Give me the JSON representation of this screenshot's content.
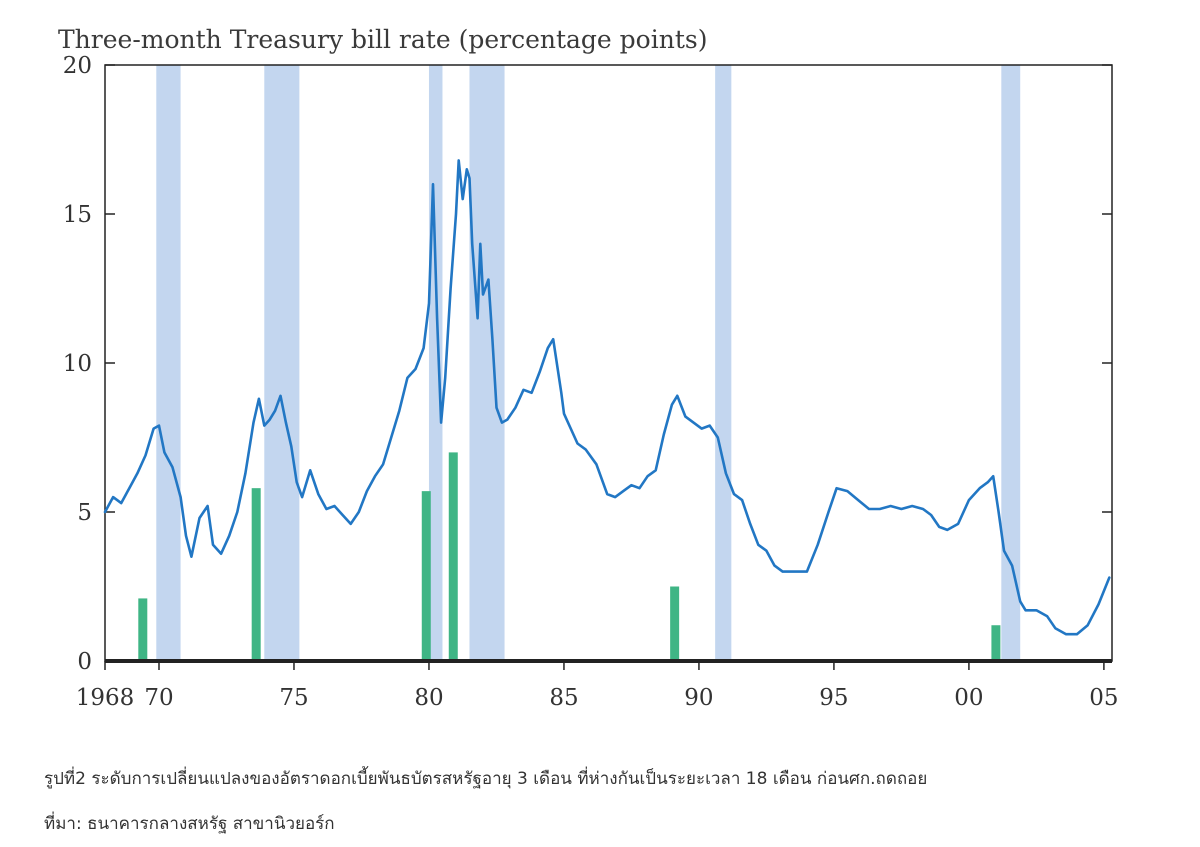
{
  "chart_data": {
    "type": "line",
    "title": "Three-month Treasury bill rate (percentage points)",
    "xlabel": "",
    "ylabel": "",
    "xlim": [
      1968,
      2005.3
    ],
    "ylim": [
      0,
      20
    ],
    "y_ticks": [
      0,
      5,
      10,
      15,
      20
    ],
    "x_ticks": [
      {
        "value": 1968,
        "label": "1968"
      },
      {
        "value": 1970,
        "label": "70"
      },
      {
        "value": 1975,
        "label": "75"
      },
      {
        "value": 1980,
        "label": "80"
      },
      {
        "value": 1985,
        "label": "85"
      },
      {
        "value": 1990,
        "label": "90"
      },
      {
        "value": 1995,
        "label": "95"
      },
      {
        "value": 2000,
        "label": "00"
      },
      {
        "value": 2005,
        "label": "05"
      }
    ],
    "recessions": [
      {
        "start": 1969.9,
        "end": 1970.8
      },
      {
        "start": 1973.9,
        "end": 1975.2
      },
      {
        "start": 1980.0,
        "end": 1980.5
      },
      {
        "start": 1981.5,
        "end": 1982.8
      },
      {
        "start": 1990.6,
        "end": 1991.2
      },
      {
        "start": 2001.2,
        "end": 2001.9
      }
    ],
    "lead_bars": [
      {
        "x": 1969.4,
        "value": 2.1
      },
      {
        "x": 1973.6,
        "value": 5.8
      },
      {
        "x": 1979.9,
        "value": 5.7
      },
      {
        "x": 1980.9,
        "value": 7.0
      },
      {
        "x": 1989.1,
        "value": 2.5
      },
      {
        "x": 2001.0,
        "value": 1.2
      }
    ],
    "series": [
      {
        "name": "Three-month Treasury bill rate",
        "x": [
          1968.0,
          1968.3,
          1968.6,
          1968.9,
          1969.2,
          1969.5,
          1969.8,
          1970.0,
          1970.2,
          1970.5,
          1970.8,
          1971.0,
          1971.2,
          1971.5,
          1971.8,
          1972.0,
          1972.3,
          1972.6,
          1972.9,
          1973.2,
          1973.5,
          1973.7,
          1973.9,
          1974.1,
          1974.3,
          1974.5,
          1974.7,
          1974.9,
          1975.1,
          1975.3,
          1975.6,
          1975.9,
          1976.2,
          1976.5,
          1976.8,
          1977.1,
          1977.4,
          1977.7,
          1978.0,
          1978.3,
          1978.6,
          1978.9,
          1979.2,
          1979.5,
          1979.8,
          1980.0,
          1980.15,
          1980.3,
          1980.45,
          1980.6,
          1980.8,
          1981.0,
          1981.1,
          1981.25,
          1981.4,
          1981.5,
          1981.6,
          1981.8,
          1981.9,
          1982.0,
          1982.2,
          1982.35,
          1982.5,
          1982.7,
          1982.9,
          1983.2,
          1983.5,
          1983.8,
          1984.1,
          1984.4,
          1984.6,
          1984.9,
          1985.0,
          1985.2,
          1985.5,
          1985.8,
          1986.2,
          1986.6,
          1986.9,
          1987.2,
          1987.5,
          1987.8,
          1988.1,
          1988.4,
          1988.7,
          1989.0,
          1989.2,
          1989.5,
          1989.8,
          1990.1,
          1990.4,
          1990.7,
          1991.0,
          1991.3,
          1991.6,
          1991.9,
          1992.2,
          1992.5,
          1992.8,
          1993.1,
          1993.5,
          1994.0,
          1994.4,
          1994.8,
          1995.1,
          1995.5,
          1995.9,
          1996.3,
          1996.7,
          1997.1,
          1997.5,
          1997.9,
          1998.3,
          1998.6,
          1998.9,
          1999.2,
          1999.6,
          2000.0,
          2000.4,
          2000.7,
          2000.9,
          2001.1,
          2001.3,
          2001.6,
          2001.9,
          2002.1,
          2002.5,
          2002.9,
          2003.2,
          2003.6,
          2004.0,
          2004.4,
          2004.8,
          2005.2
        ],
        "values": [
          5.0,
          5.5,
          5.3,
          5.8,
          6.3,
          6.9,
          7.8,
          7.9,
          7.0,
          6.5,
          5.5,
          4.2,
          3.5,
          4.8,
          5.2,
          3.9,
          3.6,
          4.2,
          5.0,
          6.3,
          8.0,
          8.8,
          7.9,
          8.1,
          8.4,
          8.9,
          8.0,
          7.2,
          6.0,
          5.5,
          6.4,
          5.6,
          5.1,
          5.2,
          4.9,
          4.6,
          5.0,
          5.7,
          6.2,
          6.6,
          7.5,
          8.4,
          9.5,
          9.8,
          10.5,
          12.0,
          16.0,
          11.5,
          8.0,
          9.5,
          12.5,
          15.0,
          16.8,
          15.5,
          16.5,
          16.2,
          14.0,
          11.5,
          14.0,
          12.3,
          12.8,
          10.8,
          8.5,
          8.0,
          8.1,
          8.5,
          9.1,
          9.0,
          9.7,
          10.5,
          10.8,
          9.0,
          8.3,
          7.9,
          7.3,
          7.1,
          6.6,
          5.6,
          5.5,
          5.7,
          5.9,
          5.8,
          6.2,
          6.4,
          7.6,
          8.6,
          8.9,
          8.2,
          8.0,
          7.8,
          7.9,
          7.5,
          6.3,
          5.6,
          5.4,
          4.6,
          3.9,
          3.7,
          3.2,
          3.0,
          3.0,
          3.0,
          3.9,
          5.0,
          5.8,
          5.7,
          5.4,
          5.1,
          5.1,
          5.2,
          5.1,
          5.2,
          5.1,
          4.9,
          4.5,
          4.4,
          4.6,
          5.4,
          5.8,
          6.0,
          6.2,
          5.0,
          3.7,
          3.2,
          2.0,
          1.7,
          1.7,
          1.5,
          1.1,
          0.9,
          0.9,
          1.2,
          1.9,
          2.8
        ]
      }
    ]
  },
  "caption": {
    "line1": "รูปที่2 ระดับการเปลี่ยนแปลงของอัตราดอกเบี้ยพันธบัตรสหรัฐอายุ 3 เดือน ที่ห่างกันเป็นระยะเวลา 18 เดือน ก่อนศก.ถดถอย",
    "line2": "ที่มา: ธนาคารกลางสหรัฐ สาขานิวยอร์ก"
  },
  "colors": {
    "line": "#2277c4",
    "recession": "#c3d6ef",
    "lead_bar": "#3fb585",
    "axis": "#222222"
  }
}
